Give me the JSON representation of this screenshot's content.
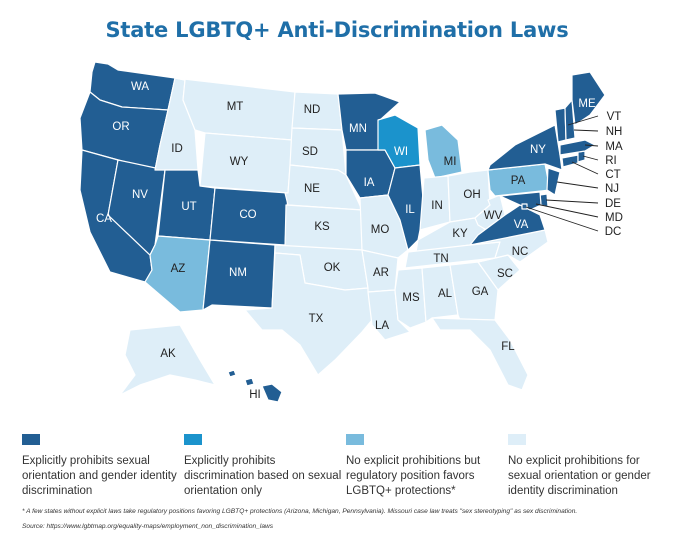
{
  "title": "State LGBTQ+  Anti-Discrimination Laws",
  "colors": {
    "explicit": "#225e93",
    "sexual_orientation_only": "#1b93cc",
    "regulatory": "#79bbdd",
    "none": "#deeef8",
    "border": "#ffffff"
  },
  "legend": [
    {
      "key": "explicit",
      "label": "Explicitly prohibits sexual orientation and gender identity discrimination"
    },
    {
      "key": "sexual_orientation_only",
      "label": "Explicitly prohibits discrimination based on sexual orientation only"
    },
    {
      "key": "regulatory",
      "label": "No explicit prohibitions but regulatory position favors LGBTQ+ protections*"
    },
    {
      "key": "none",
      "label": "No explicit prohibitions for sexual orientation or gender identity discrimination"
    }
  ],
  "states": {
    "WA": "explicit",
    "OR": "explicit",
    "CA": "explicit",
    "NV": "explicit",
    "UT": "explicit",
    "CO": "explicit",
    "NM": "explicit",
    "MN": "explicit",
    "IA": "explicit",
    "IL": "explicit",
    "NY": "explicit",
    "VA": "explicit",
    "ME": "explicit",
    "VT": "explicit",
    "NH": "explicit",
    "MA": "explicit",
    "RI": "explicit",
    "CT": "explicit",
    "NJ": "explicit",
    "DE": "explicit",
    "MD": "explicit",
    "DC": "explicit",
    "HI": "explicit",
    "WI": "sexual_orientation_only",
    "AZ": "regulatory",
    "MI": "regulatory",
    "PA": "regulatory",
    "ID": "none",
    "MT": "none",
    "WY": "none",
    "ND": "none",
    "SD": "none",
    "NE": "none",
    "KS": "none",
    "OK": "none",
    "TX": "none",
    "MO": "none",
    "AR": "none",
    "LA": "none",
    "MS": "none",
    "AL": "none",
    "TN": "none",
    "KY": "none",
    "IN": "none",
    "OH": "none",
    "WV": "none",
    "NC": "none",
    "SC": "none",
    "GA": "none",
    "FL": "none",
    "AK": "none"
  },
  "footnote": "* A few states without explicit laws take regulatory positions favoring LGBTQ+ protections (Arizona, Michigan, Pennsylvania). Missouri case law treats \"sex stereotyping\" as sex discrimination.",
  "source": "Source: https://www.lgbtmap.org/equality-maps/employment_non_discrimination_laws"
}
